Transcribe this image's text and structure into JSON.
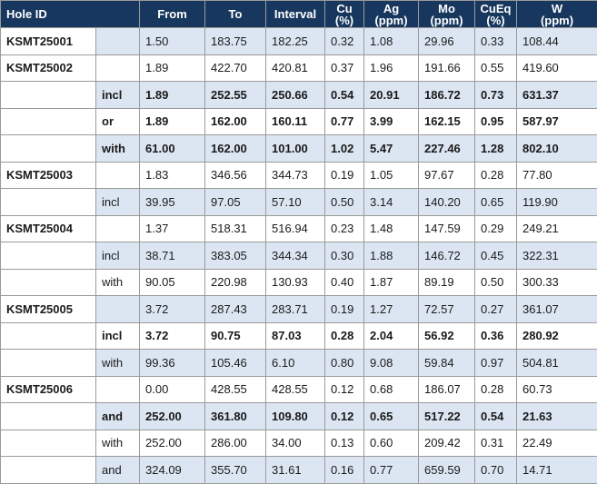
{
  "table": {
    "headers": [
      "Hole ID",
      "From",
      "To",
      "Interval",
      "Cu (%)",
      "Ag (ppm)",
      "Mo (ppm)",
      "CuEq (%)",
      "W (ppm)"
    ],
    "rows": [
      {
        "hole": "KSMT25001",
        "values": [
          "1.50",
          "183.75",
          "182.25",
          "0.32",
          "1.08",
          "29.96",
          "0.33",
          "108.44"
        ]
      },
      {
        "hole": "KSMT25002",
        "values": [
          "1.89",
          "422.70",
          "420.81",
          "0.37",
          "1.96",
          "191.66",
          "0.55",
          "419.60"
        ]
      },
      {
        "qualifier": "incl",
        "bold": true,
        "values": [
          "1.89",
          "252.55",
          "250.66",
          "0.54",
          "20.91",
          "186.72",
          "0.73",
          "631.37"
        ]
      },
      {
        "qualifier": "or",
        "bold": true,
        "values": [
          "1.89",
          "162.00",
          "160.11",
          "0.77",
          "3.99",
          "162.15",
          "0.95",
          "587.97"
        ]
      },
      {
        "qualifier": "with",
        "bold": true,
        "values": [
          "61.00",
          "162.00",
          "101.00",
          "1.02",
          "5.47",
          "227.46",
          "1.28",
          "802.10"
        ]
      },
      {
        "hole": "KSMT25003",
        "values": [
          "1.83",
          "346.56",
          "344.73",
          "0.19",
          "1.05",
          "97.67",
          "0.28",
          "77.80"
        ]
      },
      {
        "qualifier": "incl",
        "values": [
          "39.95",
          "97.05",
          "57.10",
          "0.50",
          "3.14",
          "140.20",
          "0.65",
          "119.90"
        ]
      },
      {
        "hole": "KSMT25004",
        "values": [
          "1.37",
          "518.31",
          "516.94",
          "0.23",
          "1.48",
          "147.59",
          "0.29",
          "249.21"
        ]
      },
      {
        "qualifier": "incl",
        "values": [
          "38.71",
          "383.05",
          "344.34",
          "0.30",
          "1.88",
          "146.72",
          "0.45",
          "322.31"
        ]
      },
      {
        "qualifier": "with",
        "values": [
          "90.05",
          "220.98",
          "130.93",
          "0.40",
          "1.87",
          "89.19",
          "0.50",
          "300.33"
        ]
      },
      {
        "hole": "KSMT25005",
        "values": [
          "3.72",
          "287.43",
          "283.71",
          "0.19",
          "1.27",
          "72.57",
          "0.27",
          "361.07"
        ]
      },
      {
        "qualifier": "incl",
        "bold": true,
        "values": [
          "3.72",
          "90.75",
          "87.03",
          "0.28",
          "2.04",
          "56.92",
          "0.36",
          "280.92"
        ]
      },
      {
        "qualifier": "with",
        "values": [
          "99.36",
          "105.46",
          "6.10",
          "0.80",
          "9.08",
          "59.84",
          "0.97",
          "504.81"
        ]
      },
      {
        "hole": "KSMT25006",
        "values": [
          "0.00",
          "428.55",
          "428.55",
          "0.12",
          "0.68",
          "186.07",
          "0.28",
          "60.73"
        ]
      },
      {
        "qualifier": "and",
        "bold": true,
        "values": [
          "252.00",
          "361.80",
          "109.80",
          "0.12",
          "0.65",
          "517.22",
          "0.54",
          "21.63"
        ]
      },
      {
        "qualifier": "with",
        "values": [
          "252.00",
          "286.00",
          "34.00",
          "0.13",
          "0.60",
          "209.42",
          "0.31",
          "22.49"
        ]
      },
      {
        "qualifier": "and",
        "values": [
          "324.09",
          "355.70",
          "31.61",
          "0.16",
          "0.77",
          "659.59",
          "0.70",
          "14.71"
        ]
      }
    ]
  }
}
